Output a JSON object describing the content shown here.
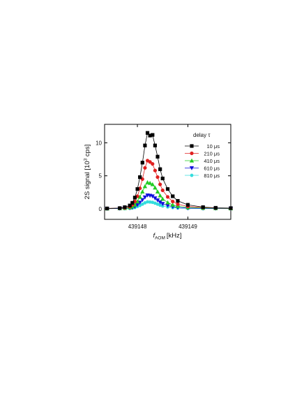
{
  "chart_data": {
    "type": "line",
    "xlabel": {
      "symbol": "f",
      "subscript": "AOM",
      "unit": "[kHz]"
    },
    "ylabel": {
      "prefix": "2S signal [10",
      "sup": "3",
      "suffix": " cps]"
    },
    "xlim": [
      439147.35,
      439149.85
    ],
    "ylim": [
      -1.6,
      12.8
    ],
    "xticks": [
      439148,
      439149
    ],
    "xtick_labels": [
      "439148",
      "439149"
    ],
    "yticks": [
      0,
      5,
      10
    ],
    "ytick_labels": [
      "0",
      "5",
      "10"
    ],
    "grid": false,
    "legend": {
      "title": "delay τ",
      "placement": "top-right"
    },
    "x": [
      439147.4,
      439147.65,
      439147.75,
      439147.85,
      439147.9,
      439147.95,
      439148.0,
      439148.05,
      439148.1,
      439148.15,
      439148.2,
      439148.25,
      439148.3,
      439148.35,
      439148.4,
      439148.45,
      439148.5,
      439148.6,
      439148.7,
      439148.8,
      439149.0,
      439149.3,
      439149.55,
      439149.85
    ],
    "series": [
      {
        "name": "10 μs",
        "color": "#000000",
        "marker": "square",
        "values": [
          0.05,
          0.1,
          0.25,
          0.5,
          0.9,
          1.7,
          3.0,
          4.8,
          7.0,
          9.6,
          11.5,
          11.1,
          11.2,
          9.6,
          7.9,
          6.0,
          4.6,
          3.0,
          1.9,
          1.2,
          0.6,
          0.25,
          0.15,
          0.1
        ]
      },
      {
        "name": "210 μs",
        "color": "#e02020",
        "marker": "circle",
        "values": [
          0.05,
          0.1,
          0.15,
          0.3,
          0.6,
          1.1,
          1.9,
          3.1,
          4.5,
          6.2,
          7.3,
          7.1,
          6.8,
          5.8,
          4.8,
          3.7,
          2.8,
          1.8,
          1.1,
          0.7,
          0.35,
          0.2,
          0.12,
          0.08
        ]
      },
      {
        "name": "410 μs",
        "color": "#22cc22",
        "marker": "triangle-up",
        "values": [
          0.03,
          0.08,
          0.1,
          0.2,
          0.35,
          0.6,
          1.1,
          1.8,
          2.6,
          3.4,
          4.0,
          3.9,
          3.7,
          3.2,
          2.6,
          2.0,
          1.5,
          0.95,
          0.6,
          0.4,
          0.2,
          0.12,
          0.08,
          0.05
        ]
      },
      {
        "name": "610 μs",
        "color": "#1010dd",
        "marker": "triangle-down",
        "values": [
          0.02,
          0.05,
          0.07,
          0.12,
          0.2,
          0.35,
          0.6,
          0.95,
          1.35,
          1.75,
          2.05,
          2.0,
          1.9,
          1.6,
          1.3,
          1.0,
          0.75,
          0.5,
          0.32,
          0.2,
          0.1,
          0.06,
          0.04,
          0.03
        ]
      },
      {
        "name": "810 μs",
        "color": "#33dddd",
        "marker": "hexagon",
        "values": [
          0.02,
          0.04,
          0.05,
          0.08,
          0.12,
          0.2,
          0.35,
          0.5,
          0.7,
          0.9,
          1.05,
          1.02,
          0.98,
          0.85,
          0.7,
          0.55,
          0.42,
          0.28,
          0.18,
          0.12,
          0.06,
          0.04,
          0.03,
          0.02
        ]
      }
    ]
  }
}
